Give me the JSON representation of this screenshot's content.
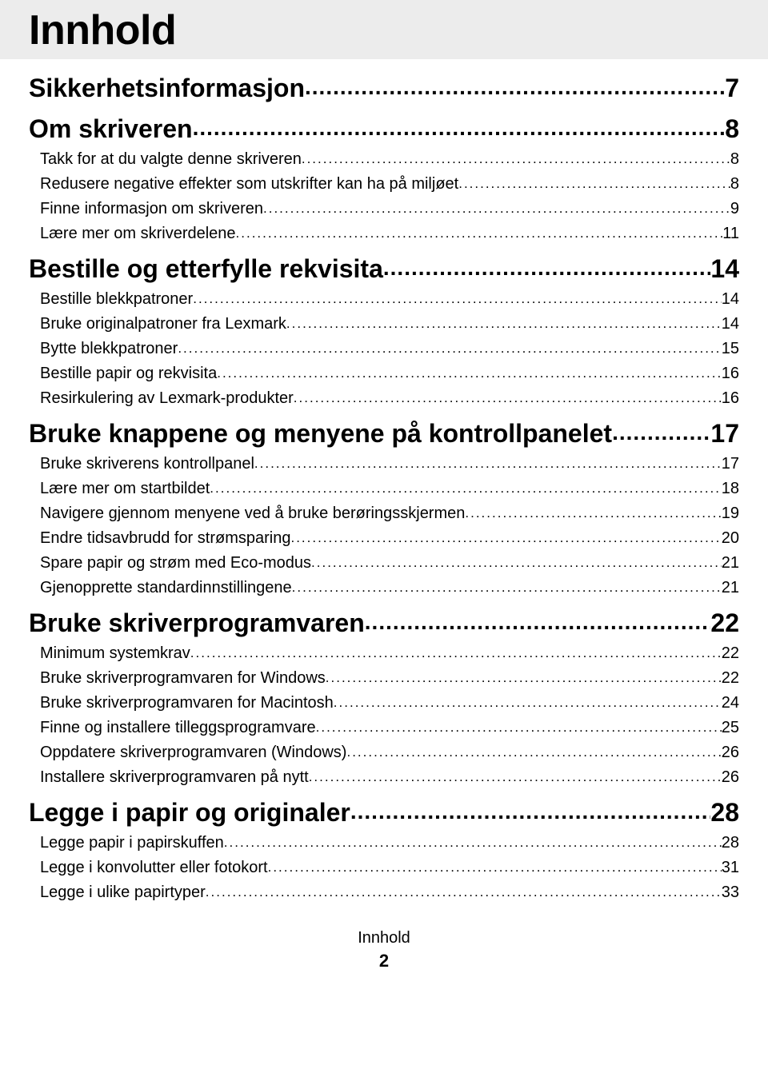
{
  "title": "Innhold",
  "footer_label": "Innhold",
  "footer_page": "2",
  "sections": [
    {
      "label": "Sikkerhetsinformasjon",
      "page": "7",
      "items": []
    },
    {
      "label": "Om skriveren",
      "page": "8",
      "items": [
        {
          "label": "Takk for at du valgte denne skriveren",
          "page": "8"
        },
        {
          "label": "Redusere negative effekter som utskrifter kan ha på miljøet",
          "page": "8"
        },
        {
          "label": "Finne informasjon om skriveren",
          "page": "9"
        },
        {
          "label": "Lære mer om skriverdelene",
          "page": "11"
        }
      ]
    },
    {
      "label": "Bestille og etterfylle rekvisita",
      "page": "14",
      "items": [
        {
          "label": "Bestille blekkpatroner",
          "page": "14"
        },
        {
          "label": "Bruke originalpatroner fra Lexmark",
          "page": "14"
        },
        {
          "label": "Bytte blekkpatroner",
          "page": "15"
        },
        {
          "label": "Bestille papir og rekvisita",
          "page": "16"
        },
        {
          "label": "Resirkulering av Lexmark-produkter",
          "page": "16"
        }
      ]
    },
    {
      "label": "Bruke knappene og menyene på kontrollpanelet",
      "page": "17",
      "items": [
        {
          "label": "Bruke skriverens kontrollpanel",
          "page": "17"
        },
        {
          "label": "Lære mer om startbildet",
          "page": "18"
        },
        {
          "label": "Navigere gjennom menyene ved å bruke berøringsskjermen",
          "page": "19"
        },
        {
          "label": "Endre tidsavbrudd for strømsparing",
          "page": "20"
        },
        {
          "label": "Spare papir og strøm med Eco-modus",
          "page": "21"
        },
        {
          "label": "Gjenopprette standardinnstillingene",
          "page": "21"
        }
      ]
    },
    {
      "label": "Bruke skriverprogramvaren",
      "page": "22",
      "items": [
        {
          "label": "Minimum systemkrav",
          "page": "22"
        },
        {
          "label": "Bruke skriverprogramvaren for Windows",
          "page": "22"
        },
        {
          "label": "Bruke skriverprogramvaren for Macintosh",
          "page": "24"
        },
        {
          "label": "Finne og installere tilleggsprogramvare",
          "page": "25"
        },
        {
          "label": "Oppdatere skriverprogramvaren (Windows)",
          "page": "26"
        },
        {
          "label": "Installere skriverprogramvaren på nytt",
          "page": "26"
        }
      ]
    },
    {
      "label": "Legge i papir og originaler",
      "page": "28",
      "items": [
        {
          "label": "Legge papir i papirskuffen",
          "page": "28"
        },
        {
          "label": "Legge i konvolutter eller fotokort",
          "page": "31"
        },
        {
          "label": "Legge i ulike papirtyper",
          "page": "33"
        }
      ]
    }
  ]
}
